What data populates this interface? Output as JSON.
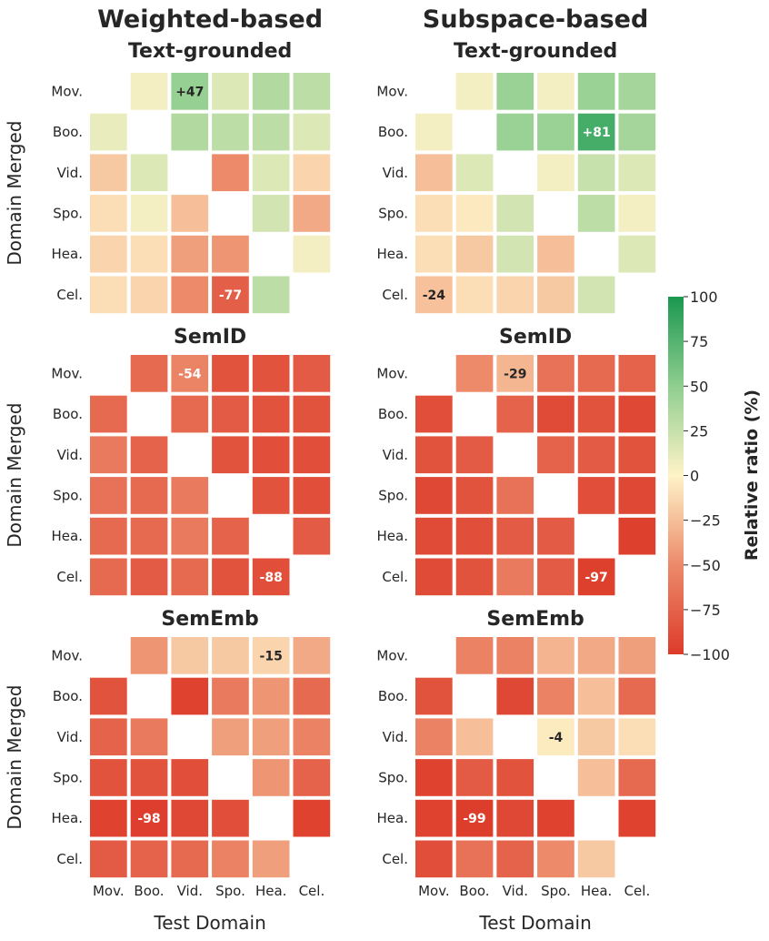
{
  "chart_data": {
    "type": "heatmap",
    "columns_titles": [
      "Weighted-based",
      "Subspace-based"
    ],
    "row_titles": [
      "Text-grounded",
      "SemID",
      "SemEmb"
    ],
    "domains": [
      "Mov.",
      "Boo.",
      "Vid.",
      "Spo.",
      "Hea.",
      "Cel."
    ],
    "xlabel": "Test Domain",
    "ylabel": "Domain Merged",
    "colorbar": {
      "label": "Relative ratio (%)",
      "range": [
        -100,
        100
      ],
      "ticks": [
        "100",
        "75",
        "50",
        "25",
        "0",
        "−25",
        "−50",
        "−75",
        "−100"
      ]
    },
    "panels": [
      {
        "method": "Weighted-based",
        "setting": "Text-grounded",
        "values": [
          [
            null,
            5,
            47,
            15,
            35,
            30
          ],
          [
            10,
            null,
            35,
            30,
            30,
            15
          ],
          [
            -20,
            15,
            null,
            -50,
            15,
            -15
          ],
          [
            -10,
            5,
            -25,
            null,
            20,
            -35
          ],
          [
            -15,
            -10,
            -40,
            -45,
            null,
            5
          ],
          [
            -10,
            -15,
            -50,
            -77,
            30,
            null
          ]
        ],
        "labels": [
          [
            0,
            2,
            "+47"
          ],
          [
            5,
            3,
            "-77"
          ]
        ]
      },
      {
        "method": "Subspace-based",
        "setting": "Text-grounded",
        "values": [
          [
            null,
            5,
            45,
            5,
            45,
            40
          ],
          [
            5,
            null,
            45,
            45,
            81,
            40
          ],
          [
            -25,
            15,
            null,
            5,
            25,
            15
          ],
          [
            -10,
            -5,
            20,
            null,
            30,
            5
          ],
          [
            -10,
            -20,
            20,
            -25,
            null,
            15
          ],
          [
            -24,
            -10,
            -15,
            -20,
            20,
            null
          ]
        ],
        "labels": [
          [
            1,
            4,
            "+81"
          ],
          [
            5,
            0,
            "-24"
          ]
        ]
      },
      {
        "method": "Weighted-based",
        "setting": "SemID",
        "values": [
          [
            null,
            -70,
            -54,
            -85,
            -85,
            -80
          ],
          [
            -70,
            null,
            -70,
            -80,
            -85,
            -85
          ],
          [
            -60,
            -75,
            null,
            -85,
            -88,
            -88
          ],
          [
            -65,
            -70,
            -60,
            null,
            -85,
            -88
          ],
          [
            -70,
            -70,
            -60,
            -75,
            null,
            -80
          ],
          [
            -70,
            -80,
            -70,
            -85,
            -88,
            null
          ]
        ],
        "labels": [
          [
            0,
            2,
            "-54"
          ],
          [
            5,
            4,
            "-88"
          ]
        ]
      },
      {
        "method": "Subspace-based",
        "setting": "SemID",
        "values": [
          [
            null,
            -50,
            -29,
            -65,
            -70,
            -75
          ],
          [
            -88,
            null,
            -75,
            -90,
            -85,
            -92
          ],
          [
            -85,
            -80,
            null,
            -75,
            -80,
            -85
          ],
          [
            -92,
            -85,
            -65,
            null,
            -88,
            -92
          ],
          [
            -90,
            -88,
            -80,
            -80,
            null,
            -97
          ],
          [
            -90,
            -85,
            -60,
            -80,
            -97,
            null
          ]
        ],
        "labels": [
          [
            0,
            2,
            "-29"
          ],
          [
            5,
            4,
            "-97"
          ]
        ]
      },
      {
        "method": "Weighted-based",
        "setting": "SemEmb",
        "values": [
          [
            null,
            -45,
            -20,
            -20,
            -15,
            -35
          ],
          [
            -85,
            null,
            -95,
            -60,
            -45,
            -70
          ],
          [
            -75,
            -60,
            null,
            -40,
            -40,
            -55
          ],
          [
            -85,
            -85,
            -88,
            null,
            -45,
            -75
          ],
          [
            -95,
            -98,
            -92,
            -88,
            null,
            -95
          ],
          [
            -80,
            -75,
            -70,
            -55,
            -40,
            null
          ]
        ],
        "labels": [
          [
            0,
            4,
            "-15"
          ],
          [
            4,
            1,
            "-98"
          ]
        ]
      },
      {
        "method": "Subspace-based",
        "setting": "SemEmb",
        "values": [
          [
            null,
            -55,
            -55,
            -30,
            -35,
            -40
          ],
          [
            -85,
            null,
            -92,
            -55,
            -25,
            -70
          ],
          [
            -55,
            -25,
            null,
            -4,
            -20,
            -10
          ],
          [
            -95,
            -80,
            -85,
            null,
            -25,
            -70
          ],
          [
            -95,
            -99,
            -92,
            -95,
            null,
            -95
          ],
          [
            -88,
            -65,
            -75,
            -50,
            -20,
            null
          ]
        ],
        "labels": [
          [
            2,
            3,
            "-4"
          ],
          [
            4,
            1,
            "-99"
          ]
        ]
      }
    ]
  }
}
